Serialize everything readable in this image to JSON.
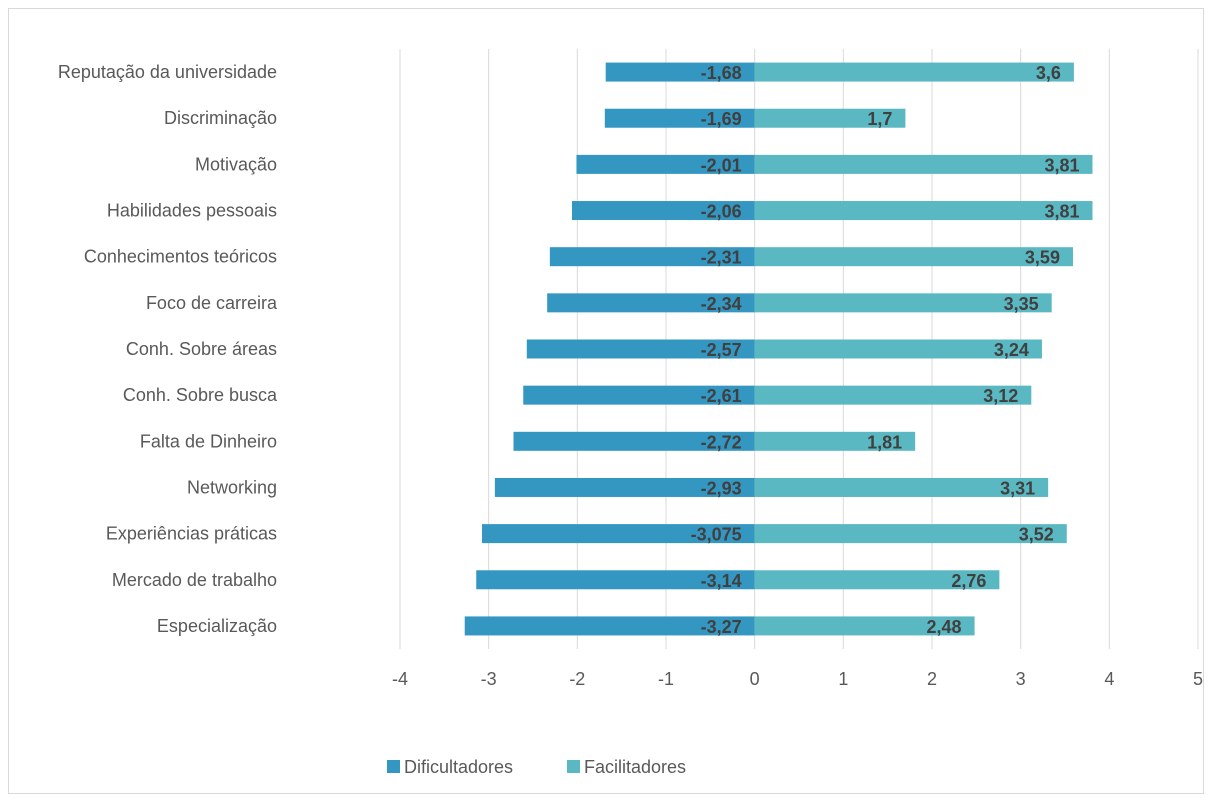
{
  "chart_data": {
    "type": "bar",
    "orientation": "horizontal",
    "stacked": true,
    "title": "",
    "xlabel": "",
    "ylabel": "",
    "categories": [
      "Reputação da universidade",
      "Discriminação",
      "Motivação",
      "Habilidades pessoais",
      "Conhecimentos teóricos",
      "Foco de carreira",
      "Conh. Sobre áreas",
      "Conh. Sobre busca",
      "Falta de Dinheiro",
      "Networking",
      "Experiências práticas",
      "Mercado de trabalho",
      "Especialização"
    ],
    "series": [
      {
        "name": "Dificultadores",
        "color": "#3497c1",
        "values": [
          -1.68,
          -1.69,
          -2.01,
          -2.06,
          -2.31,
          -2.34,
          -2.57,
          -2.61,
          -2.72,
          -2.93,
          -3.075,
          -3.14,
          -3.27
        ],
        "labels": [
          "-1,68",
          "-1,69",
          "-2,01",
          "-2,06",
          "-2,31",
          "-2,34",
          "-2,57",
          "-2,61",
          "-2,72",
          "-2,93",
          "-3,075",
          "-3,14",
          "-3,27"
        ]
      },
      {
        "name": "Facilitadores",
        "color": "#5ab8c2",
        "values": [
          3.6,
          1.7,
          3.81,
          3.81,
          3.59,
          3.35,
          3.24,
          3.12,
          1.81,
          3.31,
          3.52,
          2.76,
          2.48
        ],
        "labels": [
          "3,6",
          "1,7",
          "3,81",
          "3,81",
          "3,59",
          "3,35",
          "3,24",
          "3,12",
          "1,81",
          "3,31",
          "3,52",
          "2,76",
          "2,48"
        ]
      }
    ],
    "xlim": [
      -4,
      5
    ],
    "xticks": [
      -4,
      -3,
      -2,
      -1,
      0,
      1,
      2,
      3,
      4,
      5
    ],
    "xtick_labels": [
      "-4",
      "-3",
      "-2",
      "-1",
      "0",
      "1",
      "2",
      "3",
      "4",
      "5"
    ],
    "grid": "vertical",
    "legend": "bottom"
  }
}
